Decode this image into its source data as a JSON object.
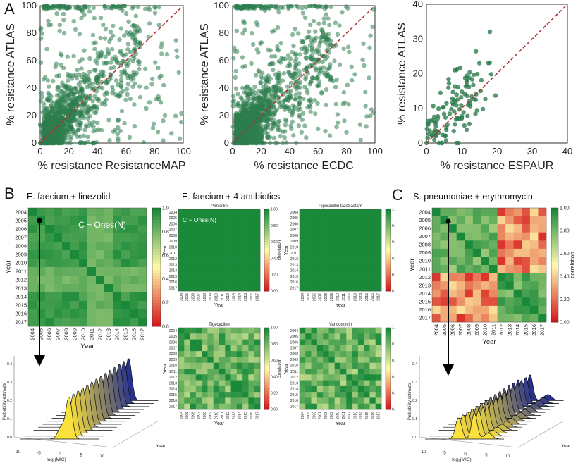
{
  "panel_labels": {
    "a": "A",
    "b": "B",
    "c": "C"
  },
  "scatter_plots": [
    {
      "xlabel": "% resistance ResistanceMAP",
      "ylabel": "% resistance ATLAS",
      "ticks": [
        "0",
        "20",
        "40",
        "60",
        "80",
        "100"
      ],
      "max": 100,
      "color": "#2e7d4f",
      "diag_color": "#b03030"
    },
    {
      "xlabel": "% resistance ECDC",
      "ylabel": "% resistance ATLAS",
      "ticks": [
        "0",
        "20",
        "40",
        "60",
        "80",
        "100"
      ],
      "max": 100,
      "color": "#2e7d4f",
      "diag_color": "#b03030"
    },
    {
      "xlabel": "% resistance ESPAUR",
      "ylabel": "% resistance ATLAS",
      "ticks": [
        "0",
        "10",
        "20",
        "30",
        "40"
      ],
      "max": 40,
      "color": "#2e7d4f",
      "diag_color": "#b03030"
    }
  ],
  "years": [
    "2004",
    "2005",
    "2006",
    "2007",
    "2008",
    "2009",
    "2010",
    "2011",
    "2012",
    "2013",
    "2014",
    "2015",
    "2016",
    "2017"
  ],
  "heatmap_b": {
    "title": "E. faecium + linezolid",
    "annotation": "C ~ Ones(N)",
    "xlabel": "Year",
    "ylabel": "Year",
    "colorbar_ticks": [
      "1.00",
      "0.80",
      "0.60",
      "0.40",
      "0.20",
      "0.00"
    ]
  },
  "heatmap_mid": {
    "title": "E. faecium + 4 antibiotics",
    "annotation": "C ~ Ones(N)",
    "panels": [
      {
        "name": "Penicillin"
      },
      {
        "name": "Piperacillin tazobactam"
      },
      {
        "name": "Tigecycline"
      },
      {
        "name": "Vancomycin"
      }
    ],
    "axis_label": "Year",
    "colorbar_label": "correlation",
    "colorbar_ticks": [
      "1.00",
      "0.80",
      "0.60",
      "0.40",
      "0.20",
      "0.00"
    ]
  },
  "heatmap_c": {
    "title": "S. pneumoniae + erythromycin",
    "xlabel": "Year",
    "ylabel": "Year",
    "colorbar_label": "correlation",
    "colorbar_ticks": [
      "1.00",
      "0.80",
      "0.60",
      "0.40",
      "0.20",
      "0.00"
    ]
  },
  "ridge_plots": [
    {
      "ylabel": "Probability estimate",
      "xlabel": "log₂(MIC)",
      "depth_label": "Year",
      "x_ticks": [
        "-10",
        "-5",
        "0",
        "5",
        "10"
      ],
      "y_ticks": [
        "0.0",
        "0.1",
        "0.2",
        "0.3",
        "0.4"
      ]
    },
    {
      "ylabel": "Probability estimate",
      "xlabel": "log₂(MIC)",
      "depth_label": "Year",
      "x_ticks": [
        "-10",
        "-5",
        "0",
        "5",
        "10"
      ],
      "y_ticks": [
        "0.0",
        "0.1",
        "0.2",
        "0.3",
        "0.4"
      ]
    }
  ],
  "colors": {
    "heat_high": "#1a8a3a",
    "heat_mid": "#ffffb0",
    "heat_low": "#d7191c",
    "arrow": "#000000"
  }
}
